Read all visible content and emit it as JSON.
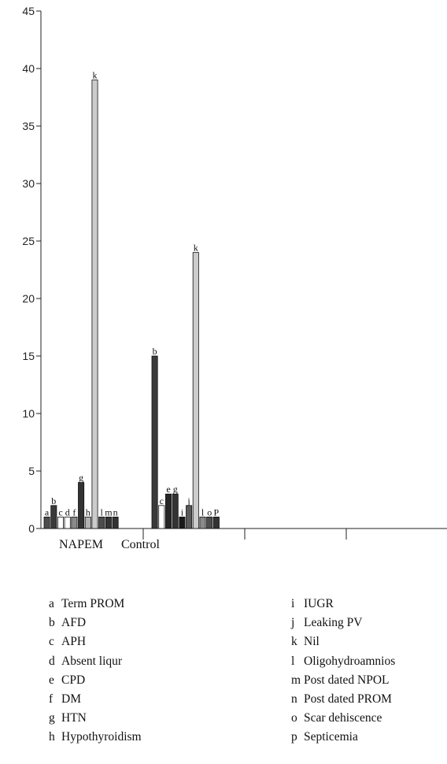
{
  "chart_data": {
    "type": "bar",
    "ylim": [
      0,
      45
    ],
    "yticks": [
      0,
      5,
      10,
      15,
      20,
      25,
      30,
      35,
      40,
      45
    ],
    "categories": [
      "NAPEM",
      "Control"
    ],
    "groups": [
      {
        "category": "NAPEM",
        "bars": [
          {
            "key": "a",
            "value": 1,
            "color": "#4d4d4d"
          },
          {
            "key": "b",
            "value": 2,
            "color": "#3a3a3a"
          },
          {
            "key": "c",
            "value": 1,
            "color": "#ffffff"
          },
          {
            "key": "d",
            "value": 1,
            "color": "#ffffff"
          },
          {
            "key": "f",
            "value": 1,
            "color": "#8a8a8a"
          },
          {
            "key": "g",
            "value": 4,
            "color": "#333333"
          },
          {
            "key": "h",
            "value": 1,
            "color": "#b3b3b3"
          },
          {
            "key": "k",
            "value": 39,
            "color": "#cccccc"
          },
          {
            "key": "l",
            "value": 1,
            "color": "#4d4d4d"
          },
          {
            "key": "m",
            "value": 1,
            "color": "#333333"
          },
          {
            "key": "n",
            "value": 1,
            "color": "#333333"
          }
        ]
      },
      {
        "category": "Control",
        "bars": [
          {
            "key": "b",
            "value": 15,
            "color": "#3a3a3a"
          },
          {
            "key": "c",
            "value": 2,
            "color": "#ffffff"
          },
          {
            "key": "e",
            "value": 3,
            "color": "#262626"
          },
          {
            "key": "g",
            "value": 3,
            "color": "#333333"
          },
          {
            "key": "i",
            "value": 1,
            "color": "#1a1a1a"
          },
          {
            "key": "j",
            "value": 2,
            "color": "#5a5a5a"
          },
          {
            "key": "k",
            "value": 24,
            "color": "#cccccc"
          },
          {
            "key": "l",
            "value": 1,
            "color": "#8a8a8a"
          },
          {
            "key": "o",
            "value": 1,
            "color": "#4d4d4d"
          },
          {
            "key": "P",
            "value": 1,
            "color": "#333333"
          }
        ]
      }
    ],
    "legend": [
      {
        "key": "a",
        "label": "Term PROM"
      },
      {
        "key": "b",
        "label": "AFD"
      },
      {
        "key": "c",
        "label": "APH"
      },
      {
        "key": "d",
        "label": "Absent liqur"
      },
      {
        "key": "e",
        "label": "CPD"
      },
      {
        "key": "f",
        "label": "DM"
      },
      {
        "key": "g",
        "label": "HTN"
      },
      {
        "key": "h",
        "label": "Hypothyroidism"
      },
      {
        "key": "i",
        "label": "IUGR"
      },
      {
        "key": "j",
        "label": "Leaking PV"
      },
      {
        "key": "k",
        "label": "Nil"
      },
      {
        "key": "l",
        "label": "Oligohydroamnios"
      },
      {
        "key": "m",
        "label": "Post dated NPOL"
      },
      {
        "key": "n",
        "label": "Post dated PROM"
      },
      {
        "key": "o",
        "label": "Scar dehiscence"
      },
      {
        "key": "p",
        "label": "Septicemia"
      }
    ]
  }
}
